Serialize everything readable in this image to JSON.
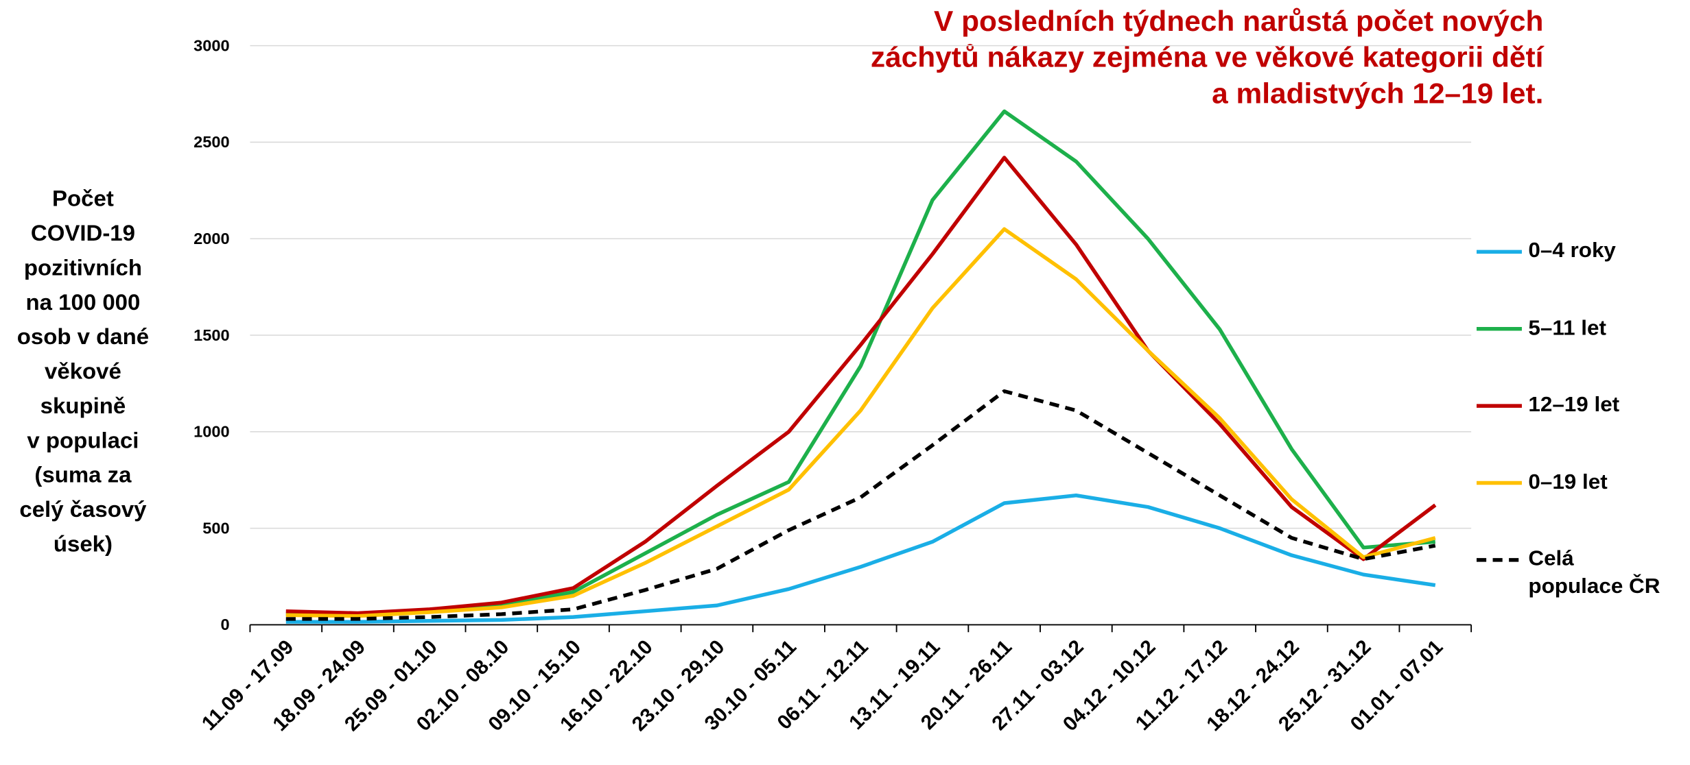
{
  "chart_data": {
    "type": "line",
    "title_lines": [
      "V posledních týdnech narůstá počet nových",
      "záchytů nákazy zejména ve věkové kategorii dětí",
      "a mladistvých 12–19 let."
    ],
    "y_label_lines": [
      "Počet",
      "COVID-19",
      "pozitivních",
      "na 100 000",
      "osob v dané",
      "věkové",
      "skupině",
      "v populaci",
      "(suma za",
      "celý časový",
      "úsek)"
    ],
    "categories": [
      "11.09 - 17.09",
      "18.09 - 24.09",
      "25.09 - 01.10",
      "02.10 - 08.10",
      "09.10 - 15.10",
      "16.10 - 22.10",
      "23.10 - 29.10",
      "30.10 - 05.11",
      "06.11 - 12.11",
      "13.11 - 19.11",
      "20.11 - 26.11",
      "27.11 - 03.12",
      "04.12 - 10.12",
      "11.12 - 17.12",
      "18.12 - 24.12",
      "25.12 - 31.12",
      "01.01 - 07.01"
    ],
    "series": [
      {
        "name": "0–4 roky",
        "color": "#1aaee6",
        "style": "solid",
        "values": [
          15,
          15,
          20,
          25,
          40,
          70,
          100,
          185,
          300,
          430,
          630,
          670,
          610,
          500,
          360,
          260,
          205
        ]
      },
      {
        "name": "5–11 let",
        "color": "#1db04b",
        "style": "solid",
        "values": [
          55,
          50,
          70,
          100,
          170,
          370,
          570,
          740,
          1340,
          2200,
          2660,
          2400,
          2000,
          1530,
          910,
          400,
          430
        ]
      },
      {
        "name": "12–19 let",
        "color": "#c00000",
        "style": "solid",
        "values": [
          70,
          60,
          80,
          115,
          190,
          430,
          720,
          1000,
          1450,
          1920,
          2420,
          1970,
          1420,
          1040,
          610,
          340,
          620
        ]
      },
      {
        "name": "0–19 let",
        "color": "#ffc000",
        "style": "solid",
        "values": [
          50,
          45,
          65,
          90,
          150,
          320,
          510,
          700,
          1110,
          1640,
          2050,
          1790,
          1420,
          1070,
          650,
          350,
          450
        ]
      },
      {
        "name": "Celá populace ČR",
        "color": "#000000",
        "style": "dashed",
        "values": [
          30,
          30,
          40,
          55,
          80,
          180,
          290,
          490,
          660,
          930,
          1210,
          1110,
          890,
          670,
          450,
          340,
          410
        ]
      }
    ],
    "ylim": [
      0,
      3000
    ],
    "yticks": [
      0,
      500,
      1000,
      1500,
      2000,
      2500,
      3000
    ],
    "grid": true,
    "legend": "right"
  }
}
